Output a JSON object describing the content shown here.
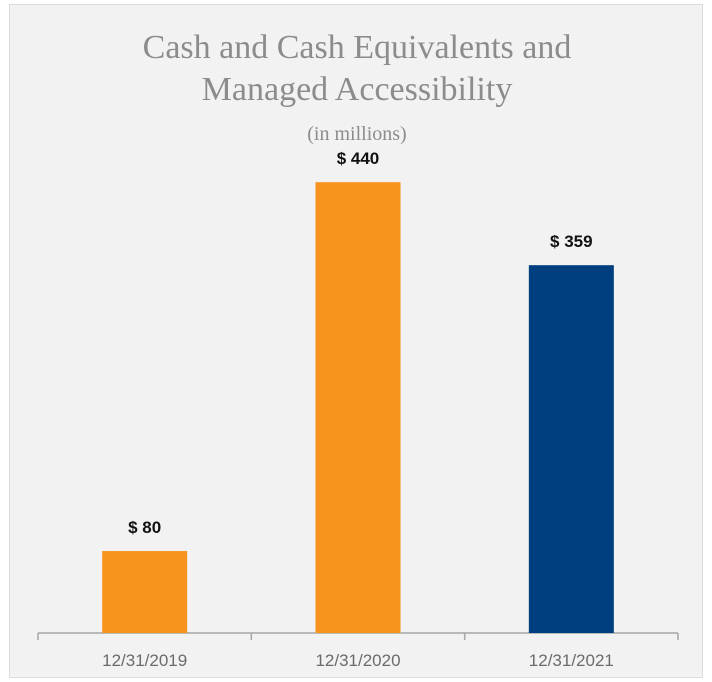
{
  "chart_data": {
    "type": "bar",
    "title_lines": [
      "Cash and Cash Equivalents and",
      "Managed Accessibility"
    ],
    "subtitle": "(in millions)",
    "categories": [
      "12/31/2019",
      "12/31/2020",
      "12/31/2021"
    ],
    "values": [
      80,
      440,
      359
    ],
    "data_labels": [
      "$ 80",
      "$ 440",
      "$ 359"
    ],
    "bar_colors": [
      "#f7941d",
      "#f7941d",
      "#003f7f"
    ],
    "xlabel": "",
    "ylabel": "",
    "ylim": [
      0,
      570
    ],
    "grid": false,
    "legend": "none"
  }
}
